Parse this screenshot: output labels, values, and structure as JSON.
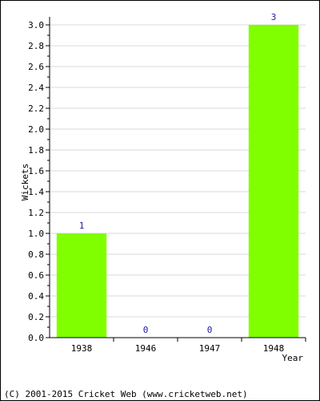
{
  "chart_data": {
    "type": "bar",
    "categories": [
      "1938",
      "1946",
      "1947",
      "1948"
    ],
    "values": [
      1,
      0,
      0,
      3
    ],
    "data_labels": [
      "1",
      "0",
      "0",
      "3"
    ],
    "xlabel": "Year",
    "ylabel": "Wickets",
    "ylim": [
      0,
      3.0
    ],
    "yticks": [
      "0.0",
      "0.2",
      "0.4",
      "0.6",
      "0.8",
      "1.0",
      "1.2",
      "1.4",
      "1.6",
      "1.8",
      "2.0",
      "2.2",
      "2.4",
      "2.6",
      "2.8",
      "3.0"
    ],
    "grid": true,
    "bar_color": "#80ff00",
    "data_label_color": "#1a1aa6"
  },
  "footer": {
    "copyright": "(C) 2001-2015 Cricket Web (www.cricketweb.net)"
  }
}
